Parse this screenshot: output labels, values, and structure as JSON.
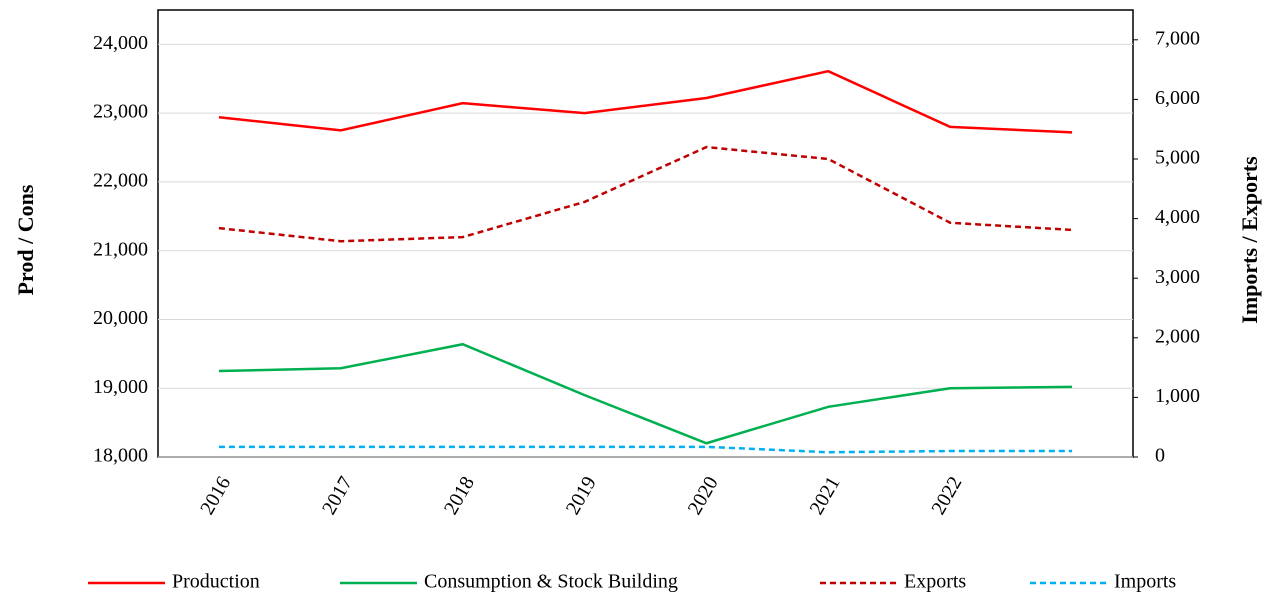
{
  "chart_data": {
    "type": "line",
    "y_label": "Prod / Cons",
    "y2_label": "Imports / Exports",
    "categories": [
      "2016",
      "2017",
      "2018",
      "2019",
      "2020",
      "2021",
      "2022",
      null
    ],
    "series": [
      {
        "name": "Production",
        "color": "#ff0000",
        "style": "solid",
        "axis": "y",
        "values": [
          22940,
          22750,
          23145,
          23000,
          23220,
          23610,
          22800,
          22720
        ]
      },
      {
        "name": "Consumption & Stock Building",
        "color": "#00b050",
        "style": "solid",
        "axis": "y",
        "values": [
          19250,
          19290,
          19640,
          18900,
          18200,
          18730,
          19000,
          19020
        ]
      },
      {
        "name": "Exports",
        "color": "#c00000",
        "style": "dashed",
        "axis": "y2",
        "values": [
          3840,
          3620,
          3690,
          4280,
          5200,
          5000,
          3930,
          3810
        ]
      },
      {
        "name": "Imports",
        "color": "#00b0f0",
        "style": "dashed",
        "axis": "y2",
        "values": [
          170,
          170,
          170,
          170,
          170,
          80,
          100,
          100
        ]
      }
    ],
    "ylim": [
      18000,
      24500
    ],
    "yticks": [
      {
        "value": 18000,
        "label": "18,000"
      },
      {
        "value": 19000,
        "label": "19,000"
      },
      {
        "value": 20000,
        "label": "20,000"
      },
      {
        "value": 21000,
        "label": "21,000"
      },
      {
        "value": 22000,
        "label": "22,000"
      },
      {
        "value": 23000,
        "label": "23,000"
      },
      {
        "value": 24000,
        "label": "24,000"
      }
    ],
    "y2lim": [
      0,
      7500
    ],
    "y2ticks": [
      0,
      {
        "value": 1000,
        "label": "1,000"
      },
      {
        "value": 2000,
        "label": "2,000"
      },
      {
        "value": 3000,
        "label": "3,000"
      },
      {
        "value": 4000,
        "label": "4,000"
      },
      {
        "value": 5000,
        "label": "5,000"
      },
      {
        "value": 6000,
        "label": "6,000"
      },
      {
        "value": 7000,
        "label": "7,000"
      }
    ],
    "grid": true,
    "legend": "bottom"
  }
}
